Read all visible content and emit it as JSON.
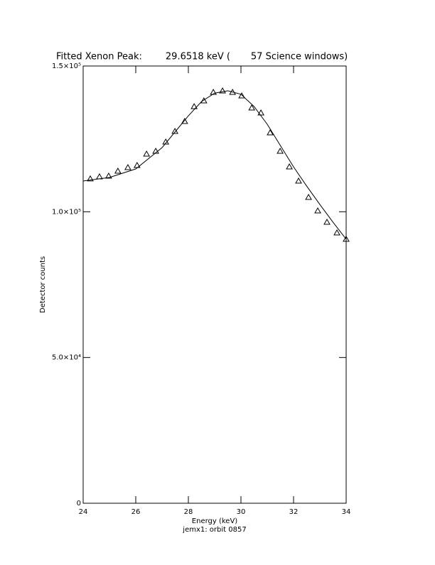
{
  "chart_data": {
    "type": "scatter",
    "title": "Fitted Xenon Peak:        29.6518 keV (       57 Science windows)",
    "xlabel": "Energy (keV)",
    "subtitle": "jemx1: orbit 0857",
    "ylabel": "Detector counts",
    "xlim": [
      24,
      34
    ],
    "xticks": [
      24,
      26,
      28,
      30,
      32,
      34
    ],
    "ylim": [
      0,
      150000
    ],
    "yticks": [
      0,
      {
        "value": 50000,
        "label": "5.0×10⁴"
      },
      {
        "value": 100000,
        "label": "1.0×10⁵"
      },
      {
        "value": 150000,
        "label": "1.5×10⁵"
      }
    ],
    "series": [
      {
        "name": "data",
        "color": "#000000",
        "marker": "triangle",
        "x": [
          24.27,
          24.62,
          24.97,
          25.32,
          25.7,
          26.05,
          26.41,
          26.76,
          27.14,
          27.49,
          27.86,
          28.22,
          28.59,
          28.95,
          29.3,
          29.68,
          30.03,
          30.41,
          30.76,
          31.11,
          31.49,
          31.84,
          32.19,
          32.57,
          32.92,
          33.27,
          33.65,
          34.0
        ],
        "values": [
          111300,
          112000,
          112250,
          113960,
          115180,
          115900,
          119800,
          120780,
          123940,
          127600,
          131000,
          136100,
          138060,
          140990,
          141470,
          140990,
          139770,
          135630,
          133930,
          127110,
          120780,
          115420,
          110550,
          104950,
          100320,
          96430,
          92770,
          90580
        ]
      },
      {
        "name": "fit",
        "color": "#000000",
        "marker": "line",
        "x": [
          24,
          25,
          26,
          27,
          28,
          28.5,
          29,
          29.5,
          30,
          30.5,
          31,
          31.5,
          32,
          32.5,
          33,
          33.5,
          34
        ],
        "values": [
          110550,
          111760,
          114700,
          122000,
          132900,
          137800,
          140700,
          141500,
          140300,
          136100,
          130000,
          122700,
          115400,
          108800,
          102500,
          96400,
          90600
        ]
      }
    ]
  }
}
